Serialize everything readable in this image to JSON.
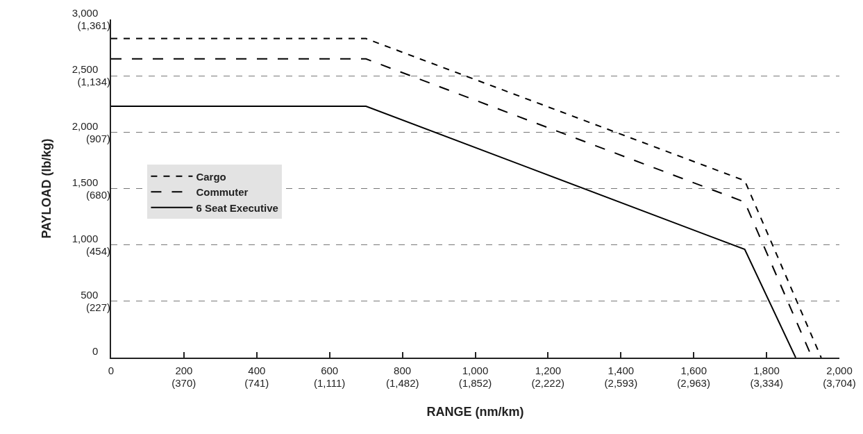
{
  "chart_data": {
    "type": "line",
    "xlabel": "RANGE (nm/km)",
    "ylabel": "PAYLOAD (lb/kg)",
    "series": [
      {
        "name": "Cargo",
        "color": "#000000",
        "line_style": "dotted",
        "x": [
          0,
          700,
          1740,
          1950
        ],
        "values": [
          2830,
          2830,
          1570,
          0
        ]
      },
      {
        "name": "Commuter",
        "color": "#000000",
        "line_style": "dashed",
        "x": [
          0,
          700,
          1740,
          1925
        ],
        "values": [
          2650,
          2650,
          1380,
          0
        ]
      },
      {
        "name": "6 Seat Executive",
        "color": "#000000",
        "line_style": "solid",
        "x": [
          0,
          700,
          1740,
          1880
        ],
        "values": [
          2230,
          2230,
          960,
          0
        ]
      }
    ],
    "xlim": [
      0,
      2000
    ],
    "ylim": [
      0,
      3000
    ],
    "xticks": [
      0,
      200,
      400,
      600,
      800,
      {
        "value": 1000,
        "label": "1,000"
      },
      {
        "value": 1200,
        "label": "1,200"
      },
      {
        "value": 1400,
        "label": "1,400"
      },
      {
        "value": 1600,
        "label": "1,600"
      },
      {
        "value": 1800,
        "label": "1,800"
      },
      {
        "value": 2000,
        "label": "2,000"
      }
    ],
    "yticks": [
      0,
      500,
      {
        "value": 1000,
        "label": "1,000"
      },
      {
        "value": 1500,
        "label": "1,500"
      },
      {
        "value": 2000,
        "label": "2,000"
      },
      {
        "value": 2500,
        "label": "2,500"
      },
      {
        "value": 3000,
        "label": "3,000"
      }
    ],
    "x2lim": [
      0,
      3704
    ],
    "x2ticks": [
      {
        "value": 370,
        "label": "(370)"
      },
      {
        "value": 741,
        "label": "(741)"
      },
      {
        "value": 1111,
        "label": "(1,111)"
      },
      {
        "value": 1482,
        "label": "(1,482)"
      },
      {
        "value": 1852,
        "label": "(1,852)"
      },
      {
        "value": 2222,
        "label": "(2,222)"
      },
      {
        "value": 2593,
        "label": "(2,593)"
      },
      {
        "value": 2963,
        "label": "(2,963)"
      },
      {
        "value": 3334,
        "label": "(3,334)"
      },
      {
        "value": 3704,
        "label": "(3,704)"
      }
    ],
    "y2lim": [
      0,
      1361
    ],
    "y2ticks": [
      {
        "value": 227,
        "label": "(227)"
      },
      {
        "value": 454,
        "label": "(454)"
      },
      {
        "value": 680,
        "label": "(680)"
      },
      {
        "value": 907,
        "label": "(907)"
      },
      {
        "value": 1134,
        "label": "(1,134)"
      },
      {
        "value": 1361,
        "label": "(1,361)"
      }
    ],
    "grid": "y",
    "legend": "left",
    "marker": "none"
  }
}
